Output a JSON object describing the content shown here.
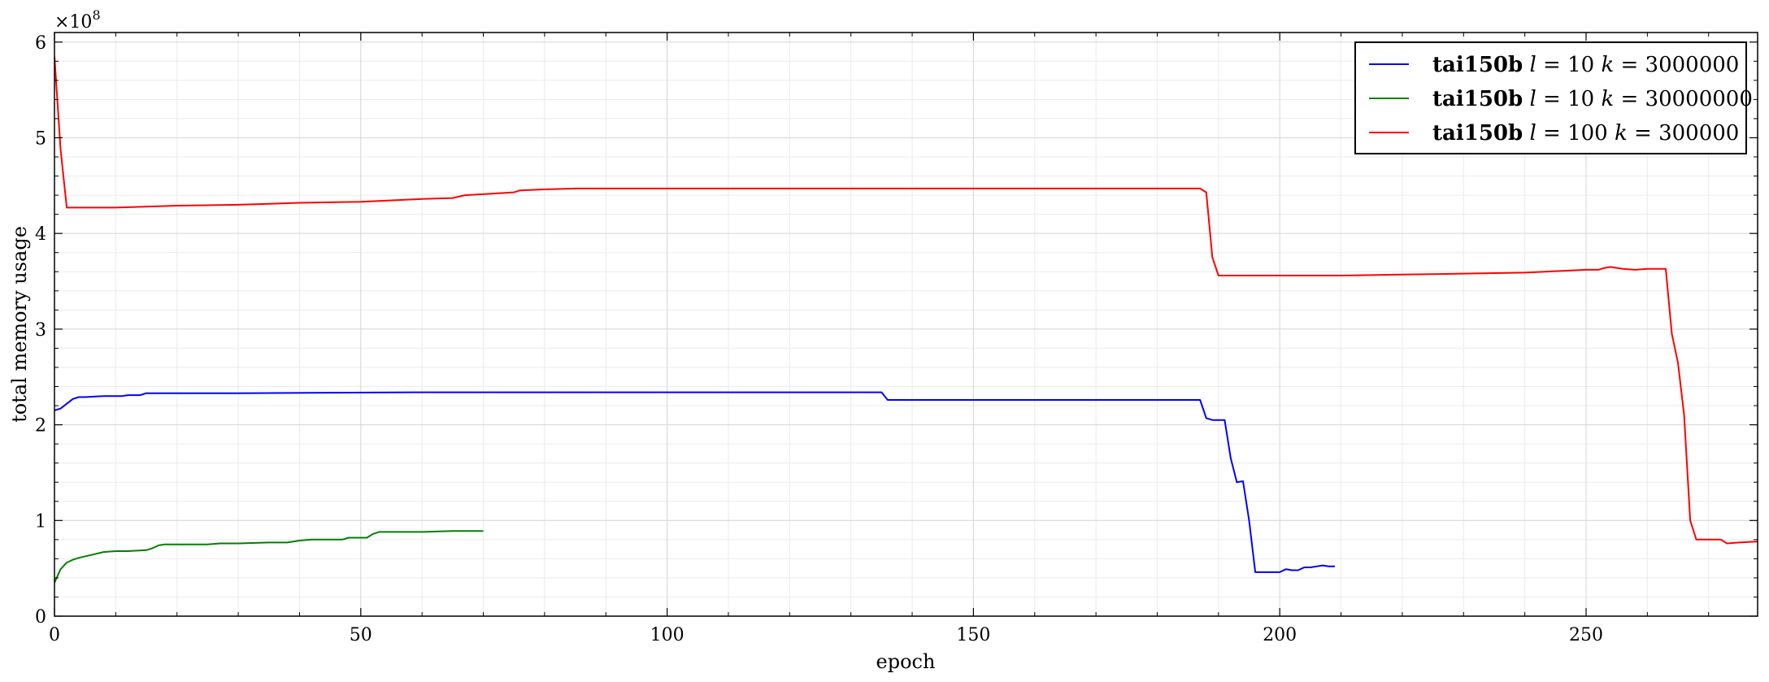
{
  "chart_data": {
    "type": "line",
    "xlabel": "epoch",
    "ylabel": "total memory usage",
    "y_multiplier": "×10",
    "y_multiplier_exponent": "8",
    "xlim": [
      0,
      278
    ],
    "ylim": [
      0,
      6.1
    ],
    "x_ticks": [
      0,
      50,
      100,
      150,
      200,
      250
    ],
    "y_ticks": [
      0,
      1,
      2,
      3,
      4,
      5,
      6
    ],
    "grid": true,
    "legend_position": "top-right",
    "series": [
      {
        "name": "tai150b l = 10 k = 3000000",
        "legend": {
          "dataset": "tai150b",
          "l_var": "l",
          "l_val": " = 10 ",
          "k_var": "k",
          "k_val": " = 3000000"
        },
        "color": "#0000ff",
        "x": [
          0,
          1,
          2,
          3,
          4,
          5,
          8,
          11,
          12,
          14,
          15,
          30,
          60,
          100,
          130,
          135,
          136,
          140,
          150,
          180,
          187,
          188,
          189,
          191,
          192,
          193,
          194,
          195,
          196,
          197,
          198,
          200,
          201,
          202,
          203,
          204,
          205,
          206,
          207,
          208,
          209
        ],
        "y": [
          2.15,
          2.17,
          2.22,
          2.27,
          2.29,
          2.29,
          2.3,
          2.3,
          2.31,
          2.31,
          2.33,
          2.33,
          2.34,
          2.34,
          2.34,
          2.34,
          2.26,
          2.26,
          2.26,
          2.26,
          2.26,
          2.07,
          2.05,
          2.05,
          1.65,
          1.4,
          1.41,
          1.0,
          0.46,
          0.46,
          0.46,
          0.46,
          0.49,
          0.48,
          0.48,
          0.51,
          0.51,
          0.52,
          0.53,
          0.52,
          0.52
        ]
      },
      {
        "name": "tai150b l = 10 k = 30000000",
        "legend": {
          "dataset": "tai150b",
          "l_var": "l",
          "l_val": " = 10 ",
          "k_var": "k",
          "k_val": " = 30000000"
        },
        "color": "#008000",
        "x": [
          0,
          1,
          2,
          3,
          4,
          6,
          8,
          10,
          12,
          15,
          16,
          17,
          18,
          20,
          25,
          27,
          30,
          35,
          38,
          40,
          42,
          45,
          47,
          48,
          50,
          51,
          52,
          53,
          55,
          60,
          65,
          70
        ],
        "y": [
          0.35,
          0.49,
          0.56,
          0.59,
          0.61,
          0.64,
          0.67,
          0.68,
          0.68,
          0.69,
          0.71,
          0.74,
          0.75,
          0.75,
          0.75,
          0.76,
          0.76,
          0.77,
          0.77,
          0.79,
          0.8,
          0.8,
          0.8,
          0.82,
          0.82,
          0.82,
          0.86,
          0.88,
          0.88,
          0.88,
          0.89,
          0.89
        ]
      },
      {
        "name": "tai150b l = 100 k = 300000",
        "legend": {
          "dataset": "tai150b",
          "l_var": "l",
          "l_val": " = 100 ",
          "k_var": "k",
          "k_val": " = 300000"
        },
        "color": "#ff0000",
        "x": [
          0,
          1,
          2,
          10,
          20,
          30,
          35,
          40,
          50,
          60,
          65,
          67,
          70,
          75,
          76,
          80,
          85,
          100,
          150,
          185,
          187,
          188,
          189,
          190,
          200,
          210,
          220,
          230,
          240,
          250,
          252,
          253,
          254,
          255,
          256,
          258,
          260,
          262,
          263,
          264,
          265,
          266,
          267,
          268,
          270,
          272,
          273,
          275,
          278
        ],
        "y": [
          5.85,
          4.88,
          4.27,
          4.27,
          4.29,
          4.3,
          4.31,
          4.32,
          4.33,
          4.36,
          4.37,
          4.4,
          4.41,
          4.43,
          4.45,
          4.46,
          4.47,
          4.47,
          4.47,
          4.47,
          4.47,
          4.43,
          3.75,
          3.56,
          3.56,
          3.56,
          3.57,
          3.58,
          3.59,
          3.62,
          3.62,
          3.64,
          3.65,
          3.64,
          3.63,
          3.62,
          3.63,
          3.63,
          3.63,
          2.95,
          2.65,
          2.1,
          1.0,
          0.8,
          0.8,
          0.8,
          0.76,
          0.77,
          0.78
        ]
      }
    ]
  }
}
